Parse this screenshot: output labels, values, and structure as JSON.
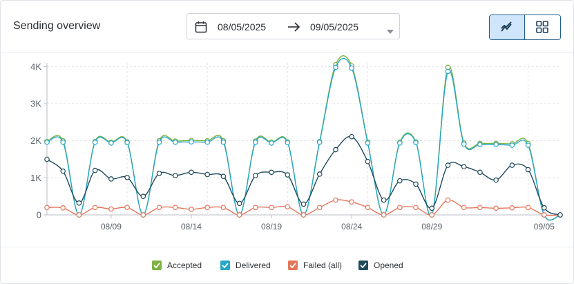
{
  "header": {
    "title": "Sending overview",
    "date_start": "08/05/2025",
    "date_end": "09/05/2025",
    "view_line_icon": "line-chart-icon",
    "view_grid_icon": "grid-icon"
  },
  "chart_data": {
    "type": "line",
    "title": "",
    "xlabel": "",
    "ylabel": "",
    "ylim": [
      0,
      4100
    ],
    "yticks": [
      0,
      1000,
      2000,
      3000,
      4000
    ],
    "ytick_labels": [
      "0",
      "1K",
      "2K",
      "3K",
      "4K"
    ],
    "xticks": [
      "08/09",
      "08/14",
      "08/19",
      "08/24",
      "08/29",
      "09/05"
    ],
    "grid": true,
    "legend_position": "bottom",
    "x": [
      "08/05",
      "08/06",
      "08/07",
      "08/08",
      "08/09",
      "08/10",
      "08/11",
      "08/12",
      "08/13",
      "08/14",
      "08/15",
      "08/16",
      "08/17",
      "08/18",
      "08/19",
      "08/20",
      "08/21",
      "08/22",
      "08/23",
      "08/24",
      "08/25",
      "08/26",
      "08/27",
      "08/28",
      "08/29",
      "08/30",
      "08/31",
      "09/01",
      "09/02",
      "09/03",
      "09/04",
      "09/05",
      "09/06"
    ],
    "series": [
      {
        "name": "Accepted",
        "color": "#7cb342",
        "values": [
          1980,
          2000,
          0,
          1980,
          1960,
          1970,
          0,
          2000,
          1990,
          2010,
          2000,
          2000,
          0,
          1990,
          1960,
          1970,
          0,
          1980,
          4050,
          4020,
          1960,
          0,
          1960,
          1970,
          0,
          3980,
          1940,
          1930,
          1930,
          1920,
          1930,
          0,
          0
        ]
      },
      {
        "name": "Delivered",
        "color": "#26a6c8",
        "values": [
          1960,
          1960,
          0,
          1960,
          1940,
          1950,
          0,
          1960,
          1960,
          1970,
          1960,
          1960,
          0,
          1960,
          1940,
          1950,
          0,
          1960,
          3980,
          3960,
          1940,
          0,
          1940,
          1950,
          0,
          3870,
          1910,
          1900,
          1900,
          1880,
          1880,
          0,
          0
        ]
      },
      {
        "name": "Failed (all)",
        "color": "#e5765a",
        "values": [
          200,
          190,
          0,
          200,
          160,
          200,
          0,
          200,
          200,
          150,
          200,
          200,
          0,
          200,
          200,
          220,
          0,
          200,
          400,
          350,
          200,
          0,
          200,
          200,
          0,
          400,
          200,
          200,
          180,
          190,
          200,
          0,
          0
        ]
      },
      {
        "name": "Opened",
        "color": "#1e4a5c",
        "values": [
          1500,
          1180,
          320,
          1200,
          970,
          1010,
          500,
          1120,
          1060,
          1150,
          1090,
          1040,
          310,
          1060,
          1150,
          1080,
          290,
          1100,
          1760,
          2110,
          1440,
          400,
          920,
          830,
          180,
          1340,
          1300,
          1150,
          940,
          1340,
          1220,
          190,
          0
        ]
      }
    ]
  }
}
